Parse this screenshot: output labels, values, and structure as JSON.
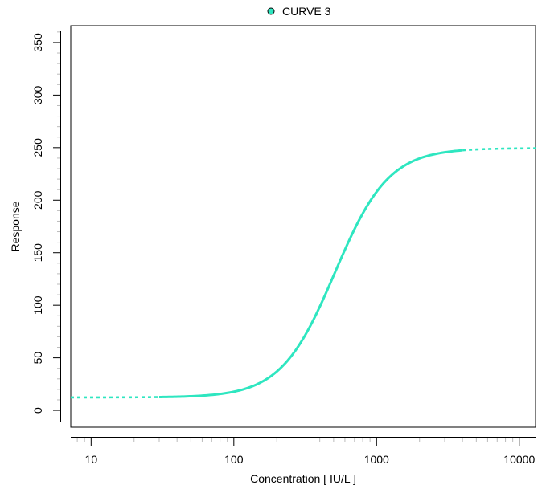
{
  "chart_data": {
    "type": "line",
    "title": "",
    "xlabel": "Concentration  [ IU/L ]",
    "ylabel": "Response",
    "x_scale": "log",
    "xlim": [
      7.2,
      13000
    ],
    "ylim": [
      -16,
      366
    ],
    "x_ticks": [
      10,
      100,
      1000,
      10000
    ],
    "x_tick_labels": [
      "10",
      "100",
      "1000",
      "10000"
    ],
    "y_ticks": [
      0,
      50,
      100,
      150,
      200,
      250,
      300,
      350
    ],
    "y_tick_labels": [
      "0",
      "50",
      "100",
      "150",
      "200",
      "250",
      "300",
      "350"
    ],
    "grid": false,
    "legend": {
      "placement": "top-center",
      "entries": [
        {
          "label": "CURVE 3",
          "color": "#2ee6c0"
        }
      ]
    },
    "series": [
      {
        "name": "CURVE 3",
        "color": "#2ee6c0",
        "model": "4PL",
        "params": {
          "bottom": 12.3,
          "top": 249.5,
          "ec50": 510,
          "hill": 2.3
        },
        "solid_range": [
          30,
          4000
        ],
        "dashed_range": [
          7.2,
          13000
        ],
        "points": [
          {
            "x": 7.2,
            "y": 12.3
          },
          {
            "x": 30,
            "y": 12.5
          },
          {
            "x": 100,
            "y": 15.0
          },
          {
            "x": 200,
            "y": 26
          },
          {
            "x": 300,
            "y": 54
          },
          {
            "x": 400,
            "y": 94
          },
          {
            "x": 500,
            "y": 127
          },
          {
            "x": 700,
            "y": 184
          },
          {
            "x": 1000,
            "y": 221
          },
          {
            "x": 2000,
            "y": 246
          },
          {
            "x": 4000,
            "y": 249.2
          },
          {
            "x": 13000,
            "y": 249.5
          }
        ]
      }
    ]
  }
}
